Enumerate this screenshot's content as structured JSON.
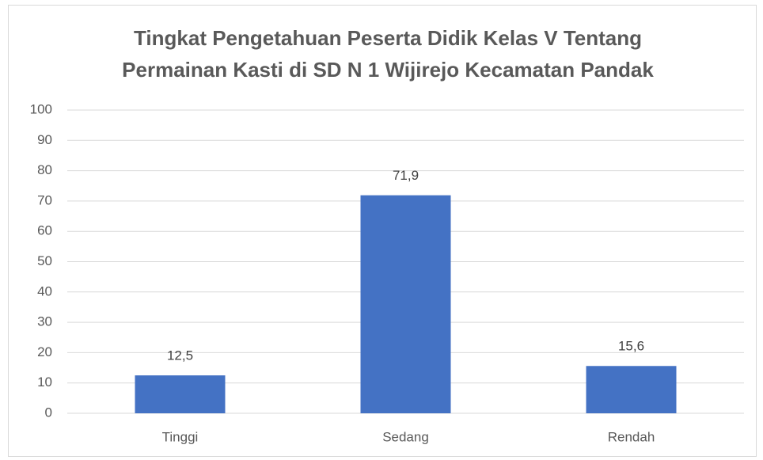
{
  "chart_data": {
    "type": "bar",
    "title": [
      "Tingkat Pengetahuan Peserta Didik Kelas V Tentang",
      "Permainan Kasti di SD N 1 Wijirejo Kecamatan Pandak"
    ],
    "categories": [
      "Tinggi",
      "Sedang",
      "Rendah"
    ],
    "values": [
      12.5,
      71.9,
      15.6
    ],
    "value_labels": [
      "12,5",
      "71,9",
      "15,6"
    ],
    "color": "#4472c4",
    "ylim": [
      0,
      100
    ],
    "yticks": [
      0,
      10,
      20,
      30,
      40,
      50,
      60,
      70,
      80,
      90,
      100
    ],
    "grid": true
  }
}
